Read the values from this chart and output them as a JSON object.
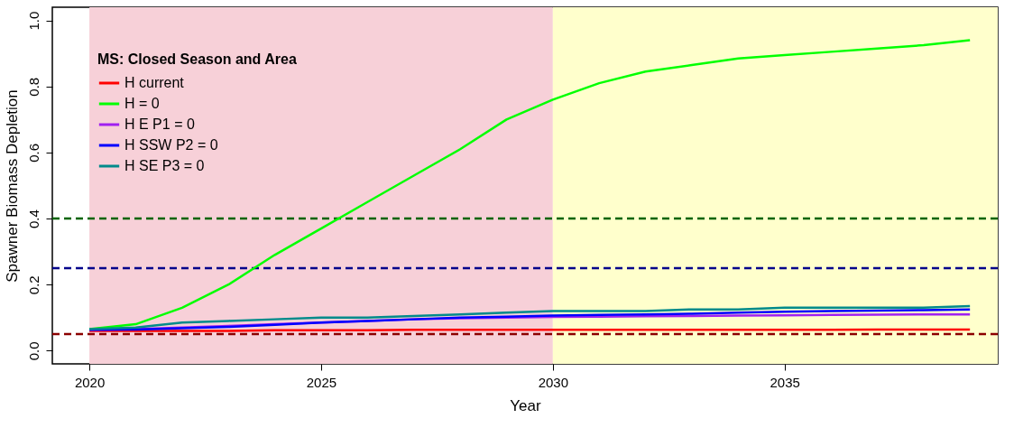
{
  "chart_data": {
    "type": "line",
    "xlabel": "Year",
    "ylabel": "Spawner Biomass Depletion",
    "legend_title": "MS: Closed Season and Area",
    "legend": "top left",
    "grid": false,
    "line_style": "solid",
    "marker": "none",
    "x": [
      2020,
      2021,
      2022,
      2023,
      2024,
      2025,
      2026,
      2027,
      2028,
      2029,
      2030,
      2031,
      2032,
      2033,
      2034,
      2035,
      2036,
      2037,
      2038,
      2039
    ],
    "xlim": [
      2019.2,
      2039.6
    ],
    "xticks": [
      2020,
      2025,
      2030,
      2035
    ],
    "ylim": [
      -0.04,
      1.04
    ],
    "yticks": [
      {
        "value": 0,
        "label": "0.0"
      },
      0.2,
      0.4,
      0.6,
      0.8,
      {
        "value": 1,
        "label": "1.0"
      }
    ],
    "series": [
      {
        "name": "H current",
        "color": "#ff0000",
        "values": [
          0.06,
          0.06,
          0.06,
          0.06,
          0.062,
          0.062,
          0.062,
          0.063,
          0.063,
          0.063,
          0.063,
          0.063,
          0.063,
          0.063,
          0.063,
          0.063,
          0.063,
          0.064,
          0.064,
          0.064
        ]
      },
      {
        "name": "H = 0",
        "color": "#00ff00",
        "values": [
          0.065,
          0.08,
          0.13,
          0.2,
          0.29,
          0.37,
          0.45,
          0.53,
          0.61,
          0.7,
          0.76,
          0.81,
          0.845,
          0.865,
          0.885,
          0.895,
          0.905,
          0.915,
          0.925,
          0.94
        ]
      },
      {
        "name": "H E P1 = 0",
        "color": "#a020f0",
        "values": [
          0.063,
          0.065,
          0.07,
          0.075,
          0.08,
          0.085,
          0.09,
          0.095,
          0.098,
          0.1,
          0.102,
          0.103,
          0.104,
          0.105,
          0.106,
          0.107,
          0.108,
          0.109,
          0.11,
          0.11
        ]
      },
      {
        "name": "H SSW P2 = 0",
        "color": "#0000ff",
        "values": [
          0.063,
          0.064,
          0.068,
          0.072,
          0.078,
          0.085,
          0.09,
          0.095,
          0.1,
          0.103,
          0.106,
          0.108,
          0.11,
          0.112,
          0.115,
          0.118,
          0.12,
          0.121,
          0.123,
          0.125
        ]
      },
      {
        "name": "H SE P3 = 0",
        "color": "#008b8b",
        "values": [
          0.065,
          0.07,
          0.085,
          0.09,
          0.095,
          0.1,
          0.1,
          0.105,
          0.11,
          0.115,
          0.12,
          0.12,
          0.12,
          0.125,
          0.125,
          0.13,
          0.13,
          0.13,
          0.13,
          0.135
        ]
      }
    ],
    "bands": [
      {
        "axis": "x",
        "from": 2020,
        "to": 2030,
        "color": "#f7d0d8"
      },
      {
        "axis": "x",
        "from": 2030,
        "to": 2039.6,
        "color": "#ffffcc"
      }
    ],
    "ref_lines": [
      {
        "axis": "y",
        "value": 0.05,
        "color": "#8b0000",
        "line_style": "dashed"
      },
      {
        "axis": "y",
        "value": 0.25,
        "color": "#00008b",
        "line_style": "dashed"
      },
      {
        "axis": "y",
        "value": 0.4,
        "color": "#006400",
        "line_style": "dashed"
      }
    ]
  }
}
